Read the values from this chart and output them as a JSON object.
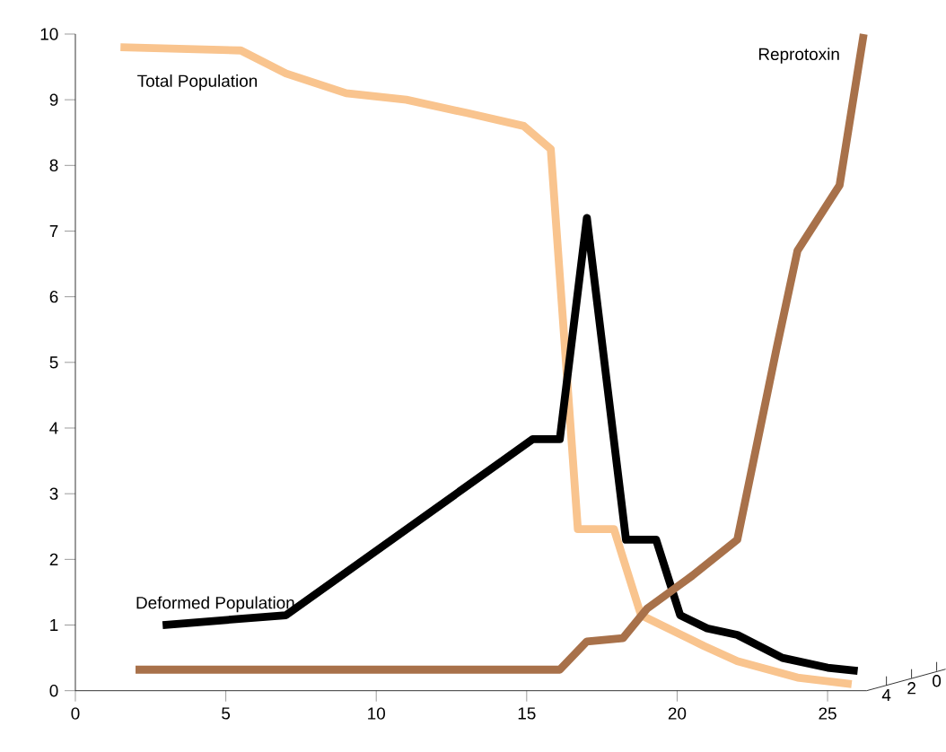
{
  "chart_data": {
    "type": "line",
    "xlim": [
      0,
      26.3
    ],
    "ylim": [
      0,
      10
    ],
    "xticks": [
      0,
      5,
      10,
      15,
      20,
      25
    ],
    "yticks": [
      0,
      1,
      2,
      3,
      4,
      5,
      6,
      7,
      8,
      9,
      10
    ],
    "grid": false,
    "marker": "none",
    "line_style": "solid",
    "annotations": [
      "4",
      "2",
      "0"
    ],
    "series": [
      {
        "name": "Total Population",
        "color": "#f9c48e",
        "x": [
          1.5,
          5.5,
          7,
          9,
          11,
          13,
          14.9,
          15.8,
          16.7,
          17.9,
          18.8,
          20.9,
          22,
          24,
          25.8
        ],
        "values": [
          9.8,
          9.75,
          9.4,
          9.1,
          9.0,
          8.8,
          8.6,
          8.25,
          2.46,
          2.46,
          1.15,
          0.68,
          0.45,
          0.2,
          0.1
        ]
      },
      {
        "name": "Deformed Population",
        "color": "#000000",
        "x": [
          2.9,
          7,
          15.2,
          16.1,
          17.0,
          18.3,
          19.3,
          20.1,
          21,
          22,
          23.5,
          25,
          26
        ],
        "values": [
          1.0,
          1.15,
          3.83,
          3.83,
          7.2,
          2.3,
          2.3,
          1.15,
          0.95,
          0.85,
          0.5,
          0.35,
          0.3
        ]
      },
      {
        "name": "Reprotoxin",
        "color": "#a8714a",
        "x": [
          2,
          16.1,
          17,
          18.2,
          19,
          20.5,
          22,
          23.3,
          24,
          25.4,
          26.2
        ],
        "values": [
          0.32,
          0.32,
          0.75,
          0.8,
          1.25,
          1.75,
          2.3,
          5.2,
          6.7,
          7.7,
          10
        ]
      }
    ]
  }
}
